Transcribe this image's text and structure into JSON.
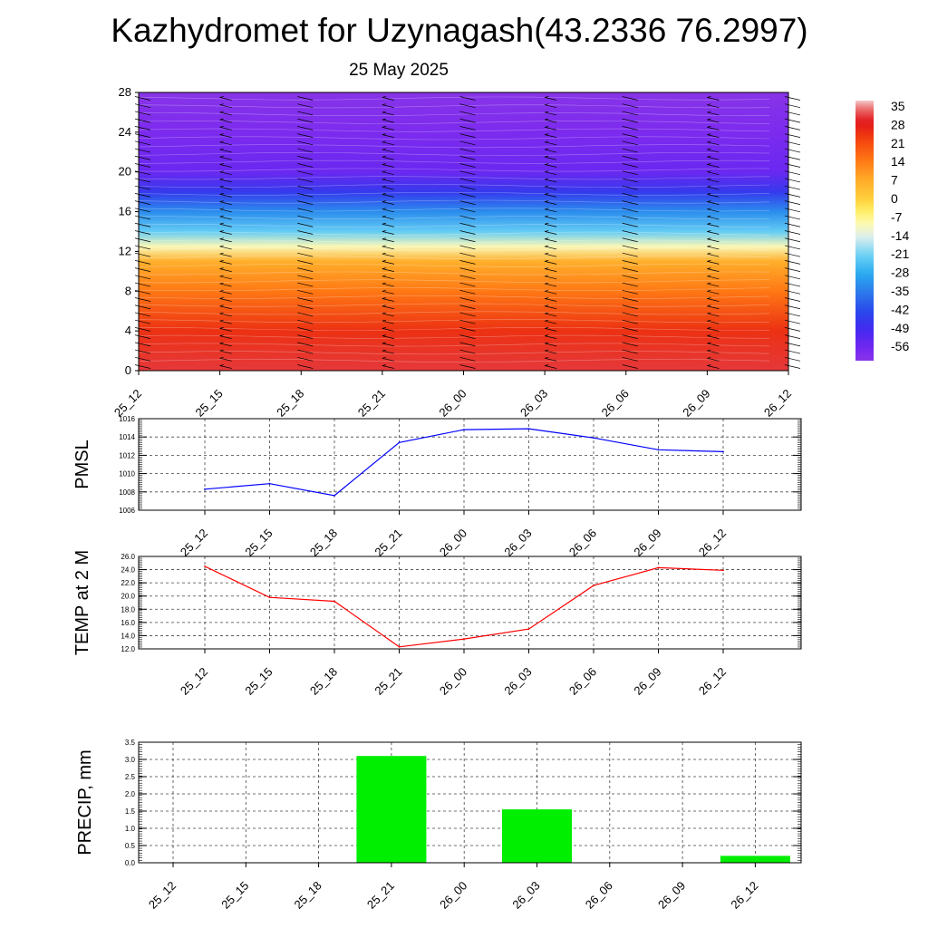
{
  "title": "Kazhydromet for Uzynagash(43.2336 76.2997)",
  "subtitle": "25 May 2025",
  "colors": {
    "pmsl_line": "#0000ff",
    "temp_line": "#ff0000",
    "precip_bar": "#00ee00",
    "grid": "#444444"
  },
  "chart_data": [
    {
      "type": "heatmap",
      "name": "vertical-cross-section",
      "x_ticks": [
        "25_12",
        "25_15",
        "25_18",
        "25_21",
        "26_00",
        "26_03",
        "26_06",
        "26_09",
        "26_12"
      ],
      "y_ticks": [
        "0",
        "4",
        "8",
        "12",
        "16",
        "20",
        "24",
        "28"
      ],
      "ylim": [
        0,
        28
      ],
      "colorbar": {
        "labels": [
          "35",
          "28",
          "21",
          "14",
          "7",
          "0",
          "-7",
          "-14",
          "-21",
          "-28",
          "-35",
          "-42",
          "-49",
          "-56"
        ],
        "range": [
          -60,
          36
        ]
      },
      "approx_temperature_profile": [
        {
          "height": 0,
          "value": 30
        },
        {
          "height": 4,
          "value": 24
        },
        {
          "height": 8,
          "value": 14
        },
        {
          "height": 11,
          "value": 6
        },
        {
          "height": 12.5,
          "value": -10
        },
        {
          "height": 14,
          "value": -22
        },
        {
          "height": 16,
          "value": -32
        },
        {
          "height": 18,
          "value": -45
        },
        {
          "height": 20,
          "value": -54
        },
        {
          "height": 24,
          "value": -57
        },
        {
          "height": 28,
          "value": -60
        }
      ],
      "wind_barbs": true
    },
    {
      "type": "line",
      "name": "pmsl",
      "ylabel": "PMSL",
      "categories": [
        "25_12",
        "25_15",
        "25_18",
        "25_21",
        "26_00",
        "26_03",
        "26_06",
        "26_09",
        "26_12"
      ],
      "values": [
        1008.3,
        1008.9,
        1007.6,
        1013.4,
        1014.8,
        1014.9,
        1013.9,
        1012.6,
        1012.4
      ],
      "y_ticks": [
        "1006",
        "1008",
        "1010",
        "1012",
        "1014",
        "1016"
      ],
      "ylim": [
        1006,
        1016
      ],
      "grid": true
    },
    {
      "type": "line",
      "name": "temp-2m",
      "ylabel": "TEMP at 2 M",
      "categories": [
        "25_12",
        "25_15",
        "25_18",
        "25_21",
        "26_00",
        "26_03",
        "26_06",
        "26_09",
        "26_12"
      ],
      "values": [
        24.5,
        19.8,
        19.2,
        12.3,
        13.5,
        15.0,
        21.6,
        24.3,
        23.9
      ],
      "y_ticks": [
        "12.0",
        "14.0",
        "16.0",
        "18.0",
        "20.0",
        "22.0",
        "24.0",
        "26.0"
      ],
      "ylim": [
        12,
        26
      ],
      "grid": true
    },
    {
      "type": "bar",
      "name": "precip",
      "ylabel": "PRECIP, mm",
      "categories": [
        "25_12",
        "25_15",
        "25_18",
        "25_21",
        "26_00",
        "26_03",
        "26_06",
        "26_09",
        "26_12"
      ],
      "values": [
        0,
        0,
        0,
        3.1,
        0,
        1.55,
        0,
        0,
        0.2
      ],
      "y_ticks": [
        "0.0",
        "0.5",
        "1.0",
        "1.5",
        "2.0",
        "2.5",
        "3.0",
        "3.5"
      ],
      "ylim": [
        0,
        3.5
      ],
      "grid": true
    }
  ]
}
